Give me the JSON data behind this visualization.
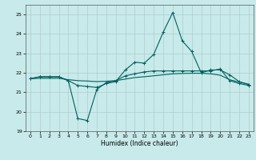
{
  "title": "",
  "xlabel": "Humidex (Indice chaleur)",
  "ylabel": "",
  "background_color": "#c8eaea",
  "grid_color": "#b0cccc",
  "line_color": "#006060",
  "xlim": [
    -0.5,
    23.5
  ],
  "ylim": [
    19,
    25.5
  ],
  "yticks": [
    19,
    20,
    21,
    22,
    23,
    24,
    25
  ],
  "xticks": [
    0,
    1,
    2,
    3,
    4,
    5,
    6,
    7,
    8,
    9,
    10,
    11,
    12,
    13,
    14,
    15,
    16,
    17,
    18,
    19,
    20,
    21,
    22,
    23
  ],
  "series1_x": [
    0,
    1,
    2,
    3,
    4,
    5,
    6,
    7,
    8,
    9,
    10,
    11,
    12,
    13,
    14,
    15,
    16,
    17,
    18,
    19,
    20,
    21,
    22,
    23
  ],
  "series1_y": [
    21.7,
    21.8,
    21.8,
    21.8,
    21.6,
    21.35,
    21.3,
    21.25,
    21.45,
    21.55,
    22.15,
    22.55,
    22.5,
    22.95,
    24.1,
    25.1,
    23.65,
    23.1,
    22.0,
    22.15,
    22.15,
    21.9,
    21.55,
    21.4
  ],
  "series2_x": [
    0,
    1,
    2,
    3,
    4,
    5,
    6,
    7,
    8,
    9,
    10,
    11,
    12,
    13,
    14,
    15,
    16,
    17,
    18,
    19,
    20,
    21,
    22,
    23
  ],
  "series2_y": [
    21.7,
    21.8,
    21.8,
    21.8,
    21.6,
    19.65,
    19.55,
    21.15,
    21.5,
    21.6,
    21.85,
    21.95,
    22.05,
    22.1,
    22.1,
    22.1,
    22.1,
    22.1,
    22.1,
    22.1,
    22.2,
    21.6,
    21.45,
    21.35
  ],
  "series3_x": [
    0,
    1,
    2,
    3,
    4,
    5,
    6,
    7,
    8,
    9,
    10,
    11,
    12,
    13,
    14,
    15,
    16,
    17,
    18,
    19,
    20,
    21,
    22,
    23
  ],
  "series3_y": [
    21.7,
    21.72,
    21.72,
    21.72,
    21.65,
    21.6,
    21.58,
    21.55,
    21.57,
    21.6,
    21.68,
    21.76,
    21.8,
    21.85,
    21.9,
    21.95,
    21.97,
    21.98,
    21.98,
    21.95,
    21.88,
    21.65,
    21.52,
    21.42
  ]
}
